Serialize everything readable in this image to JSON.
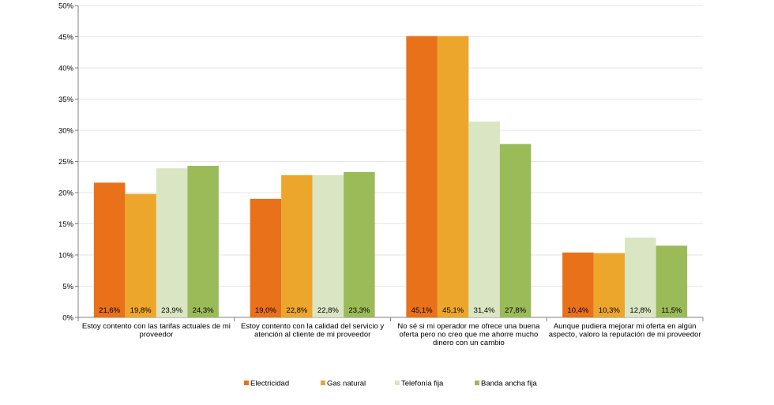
{
  "chart_data": {
    "type": "bar",
    "title": "",
    "xlabel": "",
    "ylabel": "",
    "ylim": [
      0,
      50
    ],
    "yticks": [
      "0%",
      "5%",
      "10%",
      "15%",
      "20%",
      "25%",
      "30%",
      "35%",
      "40%",
      "45%",
      "50%"
    ],
    "grid": true,
    "legend_position": "bottom",
    "categories": [
      [
        "Estoy contento con las tarifas actuales de mi",
        "proveedor"
      ],
      [
        "Estoy contento con la calidad del servicio y",
        "atención al cliente de mi proveedor"
      ],
      [
        "No sé si mi operador me ofrece una buena",
        "oferta pero no creo que me ahorre mucho",
        "dinero con un cambio"
      ],
      [
        "Aunque pudiera mejorar mi oferta en algún",
        "aspecto, valoro la reputación de mi proveedor"
      ]
    ],
    "series": [
      {
        "name": "Electricidad",
        "color": "#e87119",
        "values": [
          21.6,
          19.0,
          45.1,
          10.4
        ],
        "labels": [
          "21,6%",
          "19,0%",
          "45,1%",
          "10,4%"
        ]
      },
      {
        "name": "Gas natural",
        "color": "#eda62c",
        "values": [
          19.8,
          22.8,
          45.1,
          10.3
        ],
        "labels": [
          "19,8%",
          "22,8%",
          "45,1%",
          "10,3%"
        ]
      },
      {
        "name": "Telefonía fija",
        "color": "#dae5c3",
        "values": [
          23.9,
          22.8,
          31.4,
          12.8
        ],
        "labels": [
          "23,9%",
          "22,8%",
          "31,4%",
          "12,8%"
        ]
      },
      {
        "name": "Banda ancha fija",
        "color": "#9bbb59",
        "values": [
          24.3,
          23.3,
          27.8,
          11.5
        ],
        "labels": [
          "24,3%",
          "23,3%",
          "27,8%",
          "11,5%"
        ]
      }
    ]
  }
}
